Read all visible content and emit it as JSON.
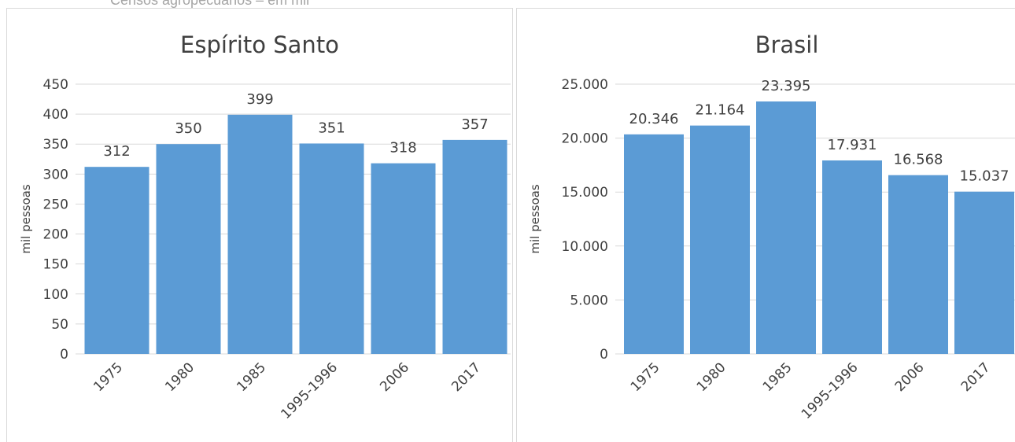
{
  "header": "Censos agropecuários – em mil",
  "chart_data": [
    {
      "type": "bar",
      "title": "Espírito Santo",
      "y_label": "mil pessoas",
      "categories": [
        "1975",
        "1980",
        "1985",
        "1995-1996",
        "2006",
        "2017"
      ],
      "values": [
        312,
        350,
        399,
        351,
        318,
        357
      ],
      "color": "#5b9bd5",
      "ylim": [
        0,
        450
      ],
      "yticks": [
        0,
        50,
        100,
        150,
        200,
        250,
        300,
        350,
        400,
        450
      ],
      "grid": true
    },
    {
      "type": "bar",
      "title": "Brasil",
      "y_label": "mil pessoas",
      "categories": [
        "1975",
        "1980",
        "1985",
        "1995-1996",
        "2006",
        "2017"
      ],
      "values": [
        20346,
        21164,
        23395,
        17931,
        16568,
        15037
      ],
      "value_labels": [
        "20.346",
        "21.164",
        "23.395",
        "17.931",
        "16.568",
        "15.037"
      ],
      "color": "#5b9bd5",
      "ylim": [
        0,
        25000
      ],
      "yticks": [
        0,
        {
          "value": 5000,
          "label": "5.000"
        },
        {
          "value": 10000,
          "label": "10.000"
        },
        {
          "value": 15000,
          "label": "15.000"
        },
        {
          "value": 20000,
          "label": "20.000"
        },
        {
          "value": 25000,
          "label": "25.000"
        }
      ],
      "grid": true
    }
  ]
}
